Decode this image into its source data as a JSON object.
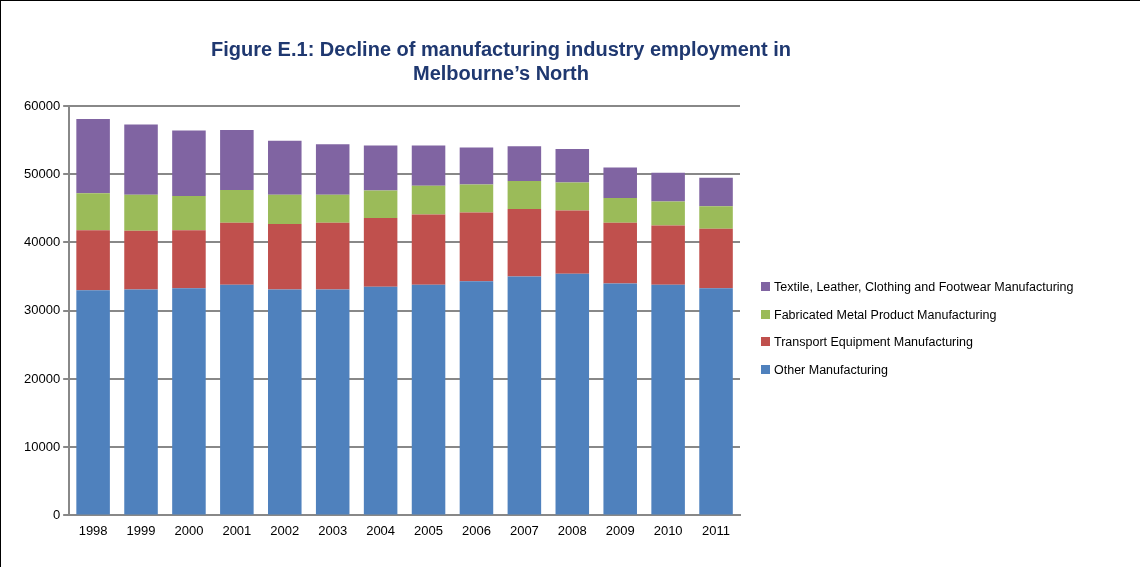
{
  "chart_data": {
    "type": "bar",
    "title": "Figure E.1: Decline of manufacturing industry employment in Melbourne’s North",
    "categories": [
      "1998",
      "1999",
      "2000",
      "2001",
      "2002",
      "2003",
      "2004",
      "2005",
      "2006",
      "2007",
      "2008",
      "2009",
      "2010",
      "2011"
    ],
    "stacked": true,
    "ylim": [
      0,
      60000
    ],
    "yticks": [
      0,
      10000,
      20000,
      30000,
      40000,
      50000,
      60000
    ],
    "grid": "y",
    "legend": "right",
    "series": [
      {
        "name": "Other Manufacturing",
        "color": "#4f81bd",
        "values": [
          33000,
          33100,
          33300,
          33800,
          33100,
          33100,
          33500,
          33800,
          34300,
          35000,
          35400,
          34000,
          33800,
          33300
        ]
      },
      {
        "name": "Transport Equipment Manufacturing",
        "color": "#c0504d",
        "values": [
          8800,
          8600,
          8500,
          9100,
          9600,
          9800,
          10100,
          10300,
          10100,
          9900,
          9300,
          8900,
          8700,
          8700
        ]
      },
      {
        "name": "Fabricated Metal Product Manufacturing",
        "color": "#9bbb59",
        "values": [
          5400,
          5300,
          5000,
          4800,
          4300,
          4100,
          4000,
          4200,
          4100,
          4100,
          4100,
          3600,
          3500,
          3300
        ]
      },
      {
        "name": "Textile, Leather, Clothing and Footwear Manufacturing",
        "color": "#8064a2",
        "values": [
          10900,
          10300,
          9600,
          8800,
          7900,
          7400,
          6600,
          5900,
          5400,
          5100,
          4900,
          4500,
          4200,
          4200
        ]
      }
    ]
  }
}
